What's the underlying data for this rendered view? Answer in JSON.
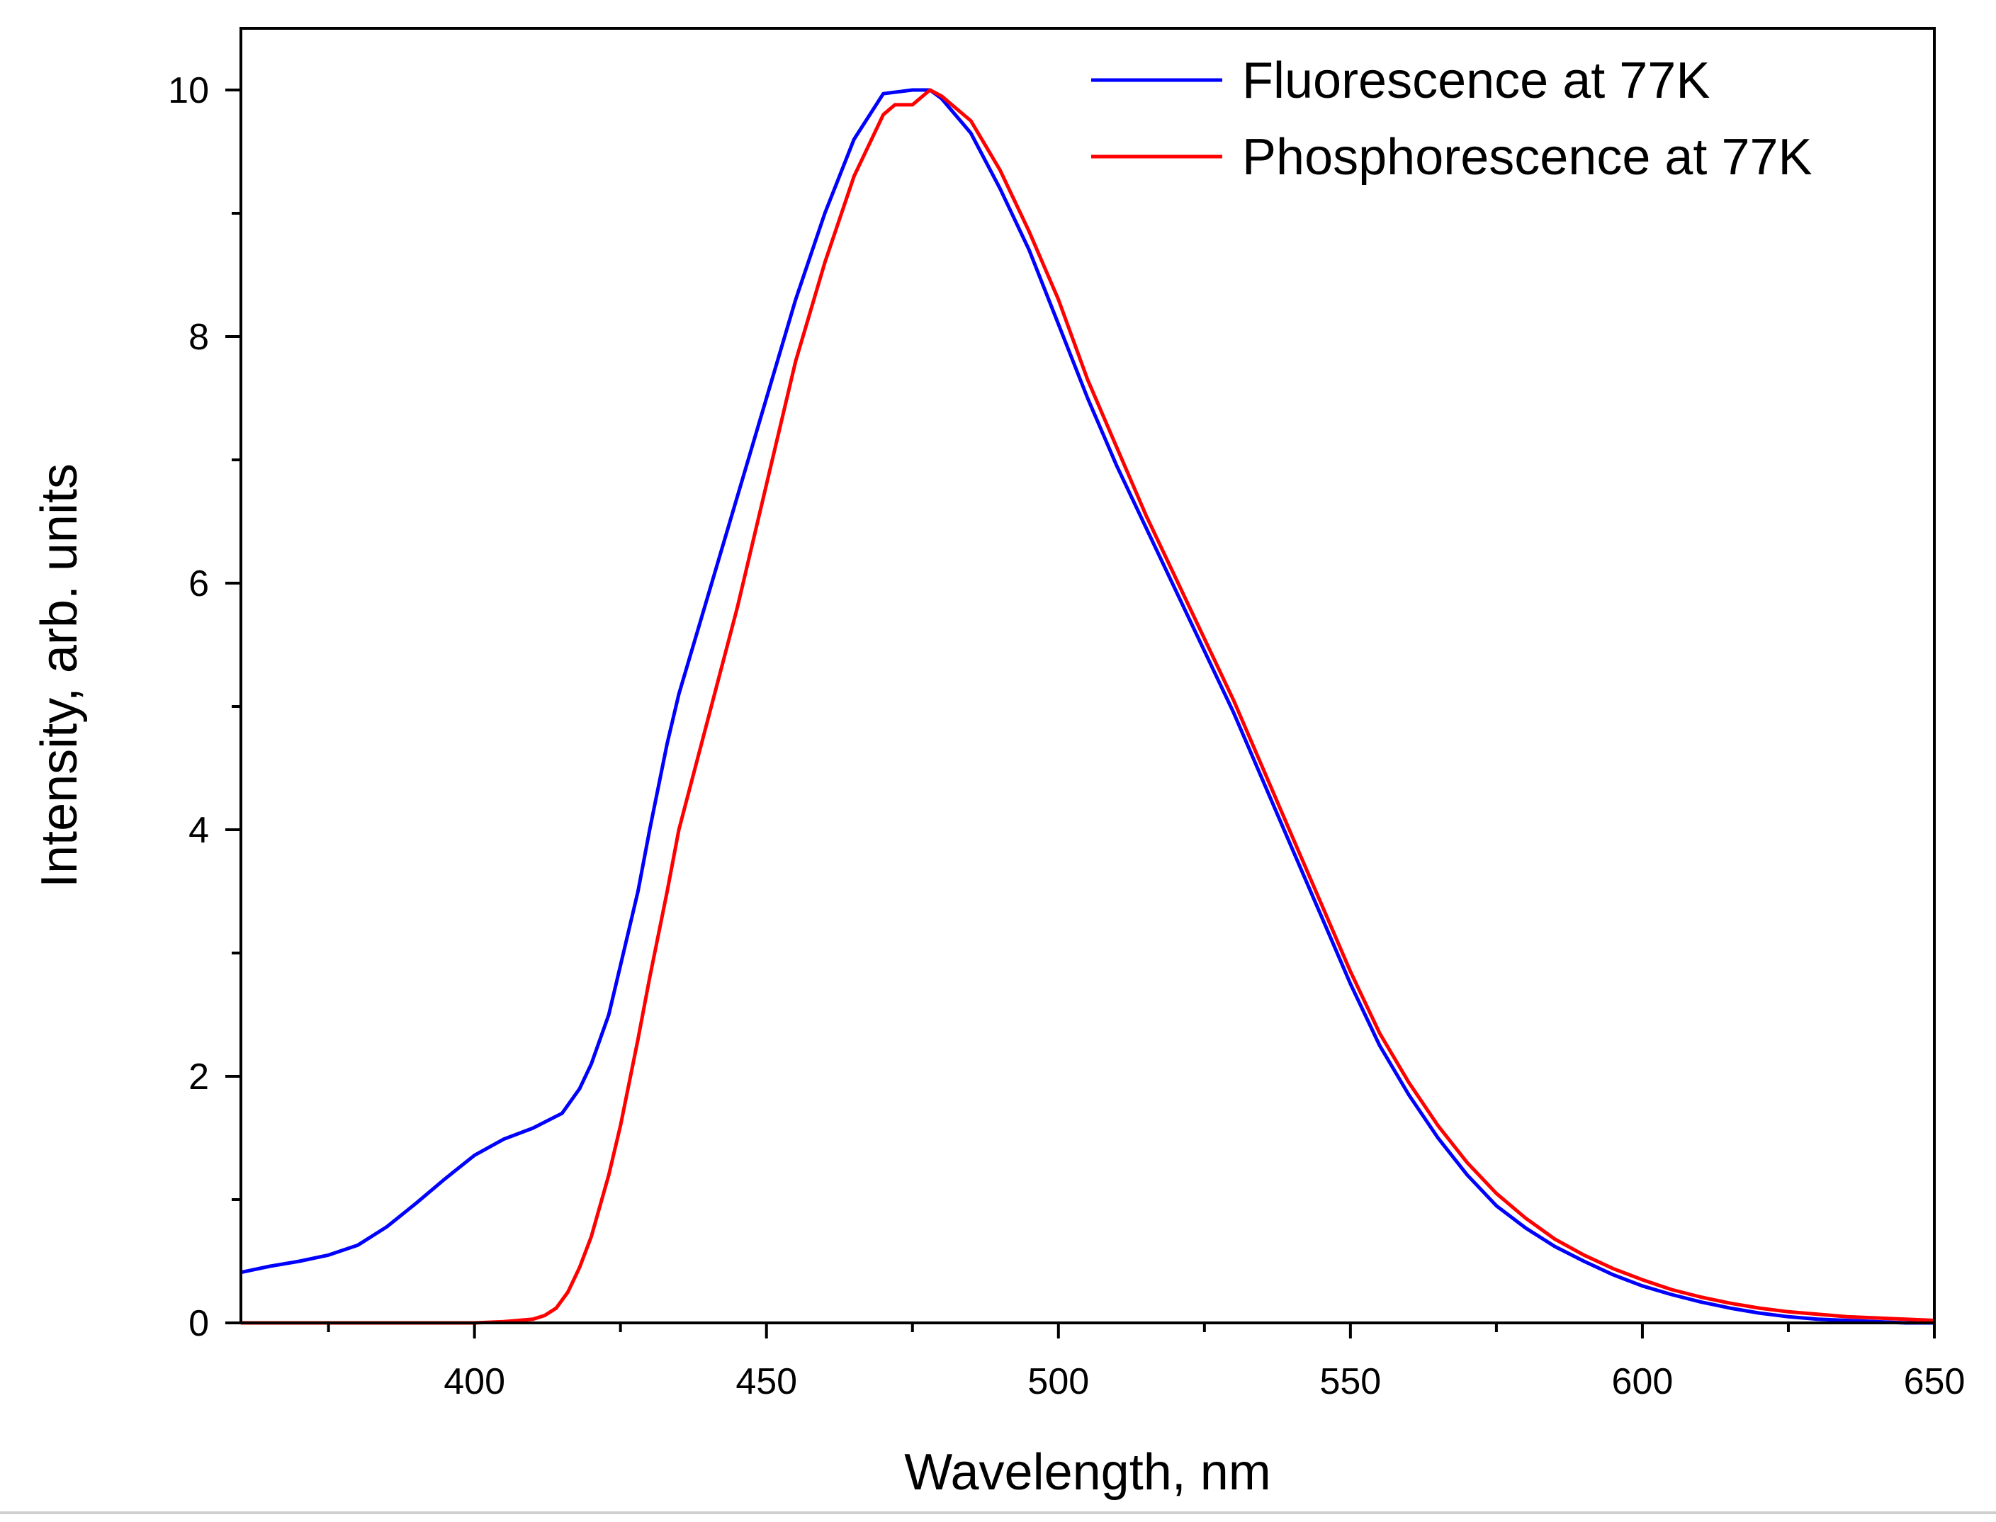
{
  "chart_data": {
    "type": "line",
    "title": "",
    "xlabel": "Wavelength, nm",
    "ylabel": "Intensity, arb. units",
    "xlim": [
      360,
      650
    ],
    "ylim": [
      0,
      10.5
    ],
    "xticks": [
      400,
      450,
      500,
      550,
      600,
      650
    ],
    "xtick_labels": [
      "400",
      "450",
      "500",
      "550",
      "600",
      "650"
    ],
    "yticks": [
      0,
      2,
      4,
      6,
      8,
      10
    ],
    "ytick_labels": [
      "0",
      "2",
      "4",
      "6",
      "8",
      "10"
    ],
    "x_minor_step": 25,
    "y_minor_step": 1,
    "grid": false,
    "legend_position": "top-right",
    "series": [
      {
        "name": "Fluorescence at 77K",
        "color": "#0000ff",
        "x": [
          360,
          365,
          370,
          375,
          380,
          385,
          390,
          395,
          400,
          405,
          410,
          415,
          418,
          420,
          423,
          425,
          428,
          430,
          433,
          435,
          440,
          445,
          450,
          455,
          460,
          465,
          470,
          475,
          478,
          480,
          485,
          490,
          495,
          500,
          505,
          510,
          515,
          520,
          525,
          530,
          535,
          540,
          545,
          550,
          555,
          560,
          565,
          570,
          575,
          580,
          585,
          590,
          595,
          600,
          605,
          610,
          615,
          620,
          625,
          630,
          635,
          640,
          645,
          650
        ],
        "y": [
          0.41,
          0.46,
          0.5,
          0.55,
          0.63,
          0.78,
          0.97,
          1.17,
          1.36,
          1.49,
          1.58,
          1.7,
          1.9,
          2.1,
          2.5,
          2.9,
          3.5,
          4.0,
          4.7,
          5.1,
          5.9,
          6.7,
          7.5,
          8.3,
          9.0,
          9.6,
          9.97,
          10.0,
          10.0,
          9.93,
          9.65,
          9.2,
          8.7,
          8.1,
          7.5,
          6.95,
          6.45,
          5.95,
          5.45,
          4.95,
          4.4,
          3.85,
          3.3,
          2.75,
          2.25,
          1.85,
          1.5,
          1.2,
          0.95,
          0.77,
          0.62,
          0.5,
          0.39,
          0.3,
          0.23,
          0.17,
          0.12,
          0.08,
          0.05,
          0.03,
          0.02,
          0.01,
          0.0,
          0.0
        ]
      },
      {
        "name": "Phosphorescence at 77K",
        "color": "#ff0000",
        "x": [
          360,
          380,
          400,
          405,
          410,
          412,
          414,
          416,
          418,
          420,
          423,
          425,
          428,
          430,
          433,
          435,
          440,
          445,
          450,
          455,
          460,
          465,
          470,
          472,
          475,
          478,
          480,
          485,
          490,
          495,
          500,
          505,
          510,
          515,
          520,
          525,
          530,
          535,
          540,
          545,
          550,
          555,
          560,
          565,
          570,
          575,
          580,
          585,
          590,
          595,
          600,
          605,
          610,
          615,
          620,
          625,
          630,
          635,
          640,
          645,
          650
        ],
        "y": [
          0.0,
          0.0,
          0.0,
          0.01,
          0.03,
          0.06,
          0.12,
          0.25,
          0.45,
          0.7,
          1.2,
          1.6,
          2.3,
          2.8,
          3.5,
          4.0,
          4.9,
          5.8,
          6.8,
          7.8,
          8.6,
          9.3,
          9.8,
          9.88,
          9.88,
          10.0,
          9.95,
          9.75,
          9.35,
          8.85,
          8.3,
          7.65,
          7.1,
          6.55,
          6.05,
          5.55,
          5.05,
          4.5,
          3.95,
          3.4,
          2.85,
          2.35,
          1.95,
          1.6,
          1.3,
          1.05,
          0.85,
          0.68,
          0.55,
          0.44,
          0.35,
          0.27,
          0.21,
          0.16,
          0.12,
          0.09,
          0.07,
          0.05,
          0.04,
          0.03,
          0.02
        ]
      }
    ]
  }
}
